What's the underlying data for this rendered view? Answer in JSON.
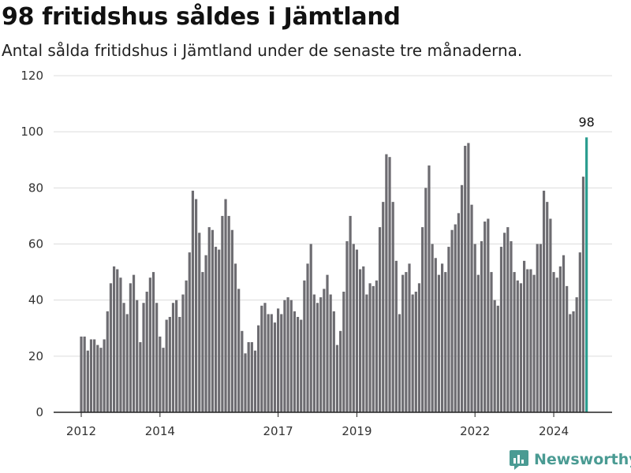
{
  "header": {
    "title": "98 fritidshus såldes i Jämtland",
    "subtitle": "Antal sålda fritidshus i Jämtland under de senaste tre månaderna."
  },
  "brand": {
    "name": "Newsworthy",
    "icon": "newsworthy-logo-icon",
    "color": "#4a9b93"
  },
  "chart_data": {
    "type": "bar",
    "x_unit": "month",
    "x_start": "2012-01",
    "x_ticks": [
      "2012",
      "2014",
      "2017",
      "2019",
      "2022",
      "2024"
    ],
    "y_ticks": [
      0,
      20,
      40,
      60,
      80,
      100,
      120
    ],
    "ylim": [
      0,
      120
    ],
    "grid": true,
    "bar_color": "#6d6c71",
    "highlight_color": "#2a9d8f",
    "highlight_label": "98",
    "values": [
      27,
      27,
      22,
      26,
      26,
      24,
      23,
      26,
      36,
      46,
      52,
      51,
      48,
      39,
      35,
      46,
      49,
      40,
      25,
      39,
      43,
      48,
      50,
      39,
      27,
      23,
      33,
      34,
      39,
      40,
      34,
      42,
      47,
      57,
      79,
      76,
      64,
      50,
      56,
      66,
      65,
      59,
      58,
      70,
      76,
      70,
      65,
      53,
      44,
      29,
      21,
      25,
      25,
      22,
      31,
      38,
      39,
      35,
      35,
      32,
      37,
      35,
      40,
      41,
      40,
      36,
      34,
      33,
      47,
      53,
      60,
      42,
      39,
      41,
      44,
      49,
      42,
      36,
      24,
      29,
      43,
      61,
      70,
      60,
      58,
      51,
      52,
      42,
      46,
      45,
      47,
      66,
      75,
      92,
      91,
      75,
      54,
      35,
      49,
      50,
      53,
      42,
      43,
      46,
      66,
      80,
      88,
      60,
      55,
      49,
      53,
      50,
      59,
      65,
      67,
      71,
      81,
      95,
      96,
      74,
      60,
      49,
      61,
      68,
      69,
      50,
      40,
      38,
      59,
      64,
      66,
      61,
      50,
      47,
      46,
      54,
      51,
      51,
      49,
      60,
      60,
      79,
      75,
      69,
      50,
      48,
      52,
      56,
      45,
      35,
      36,
      41,
      57,
      84,
      98
    ]
  }
}
